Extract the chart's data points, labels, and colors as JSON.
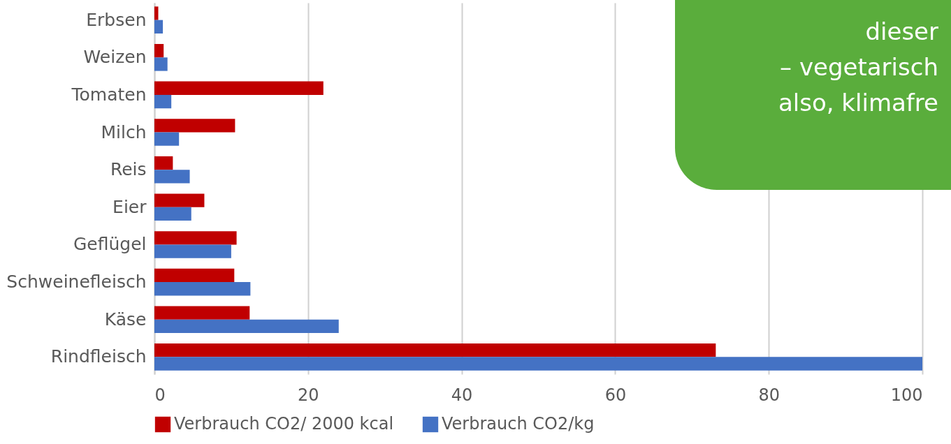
{
  "chart_data": {
    "type": "bar",
    "orientation": "horizontal",
    "categories": [
      "Erbsen",
      "Weizen",
      "Tomaten",
      "Milch",
      "Reis",
      "Eier",
      "Geflügel",
      "Schweinefleisch",
      "Käse",
      "Rindfleisch"
    ],
    "series": [
      {
        "name": "Verbrauch CO2/ 2000 kcal",
        "color": "#c00000",
        "values": [
          0.5,
          1.2,
          22,
          10.5,
          2.4,
          6.5,
          10.7,
          10.4,
          12.4,
          73.1
        ]
      },
      {
        "name": "Verbrauch CO2/kg",
        "color": "#4472c4",
        "values": [
          1.1,
          1.7,
          2.2,
          3.2,
          4.6,
          4.8,
          10.0,
          12.5,
          24,
          100
        ]
      }
    ],
    "xlim": [
      0,
      100
    ],
    "xticks": [
      0,
      20,
      40,
      60,
      80,
      100
    ],
    "grid": "x",
    "legend": "bottom",
    "annotations": [
      "dieser",
      "– vegetarisch",
      "also, klimafre"
    ]
  }
}
